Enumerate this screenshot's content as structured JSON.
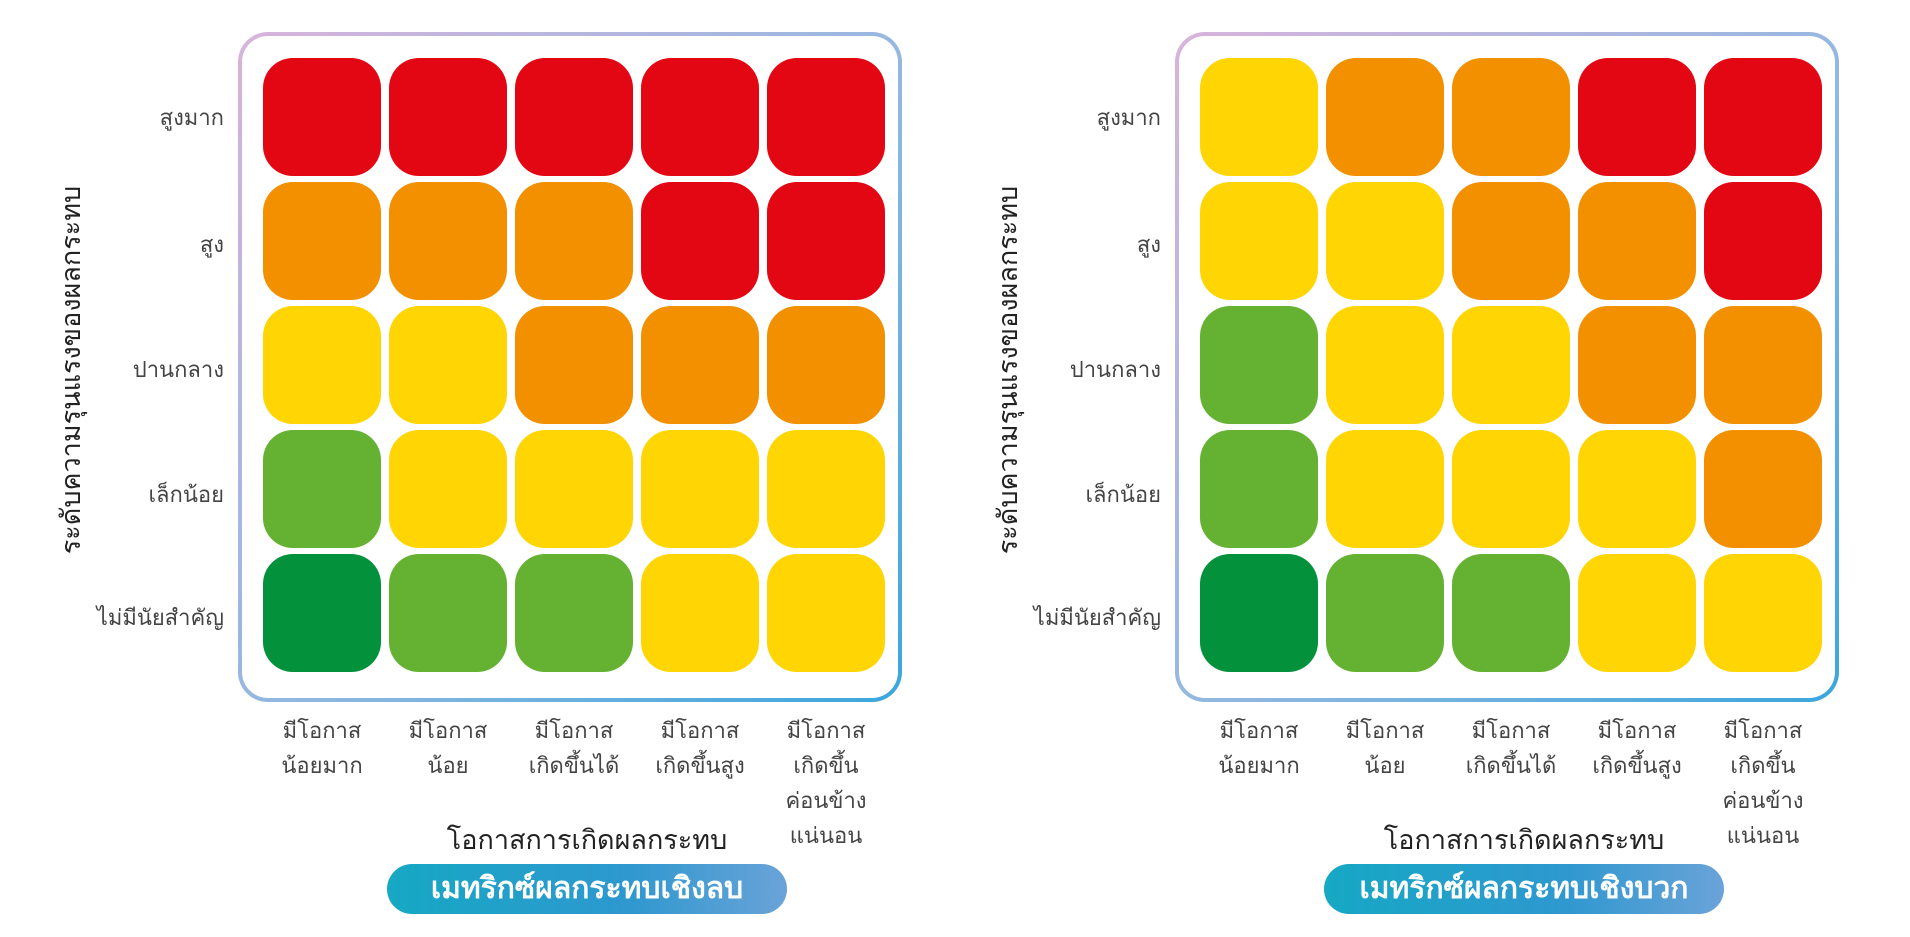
{
  "colors": {
    "dark_green": "#03913c",
    "green": "#65b232",
    "yellow": "#ffd503",
    "orange": "#f39000",
    "red": "#e30613"
  },
  "row_labels": [
    "สูงมาก",
    "สูง",
    "ปานกลาง",
    "เล็กน้อย",
    "ไม่มีนัยสำคัญ"
  ],
  "col_labels": [
    [
      "มีโอกาส",
      "น้อยมาก"
    ],
    [
      "มีโอกาส",
      "น้อย"
    ],
    [
      "มีโอกาส",
      "เกิดขึ้นได้"
    ],
    [
      "มีโอกาส",
      "เกิดขึ้นสูง"
    ],
    [
      "มีโอกาส",
      "เกิดขึ้น",
      "ค่อนข้าง",
      "แน่นอน"
    ]
  ],
  "y_axis_title": "ระดับความรุนแรงของผลกระทบ",
  "x_axis_title": "โอกาสการเกิดผลกระทบ",
  "matrices": [
    {
      "caption": "เมทริกซ์ผลกระทบเชิงลบ",
      "cells": [
        [
          "red",
          "red",
          "red",
          "red",
          "red"
        ],
        [
          "orange",
          "orange",
          "orange",
          "red",
          "red"
        ],
        [
          "yellow",
          "yellow",
          "orange",
          "orange",
          "orange"
        ],
        [
          "green",
          "yellow",
          "yellow",
          "yellow",
          "yellow"
        ],
        [
          "dark_green",
          "green",
          "green",
          "yellow",
          "yellow"
        ]
      ]
    },
    {
      "caption": "เมทริกซ์ผลกระทบเชิงบวก",
      "cells": [
        [
          "yellow",
          "orange",
          "orange",
          "red",
          "red"
        ],
        [
          "yellow",
          "yellow",
          "orange",
          "orange",
          "red"
        ],
        [
          "green",
          "yellow",
          "yellow",
          "orange",
          "orange"
        ],
        [
          "green",
          "yellow",
          "yellow",
          "yellow",
          "orange"
        ],
        [
          "dark_green",
          "green",
          "green",
          "yellow",
          "yellow"
        ]
      ]
    }
  ]
}
